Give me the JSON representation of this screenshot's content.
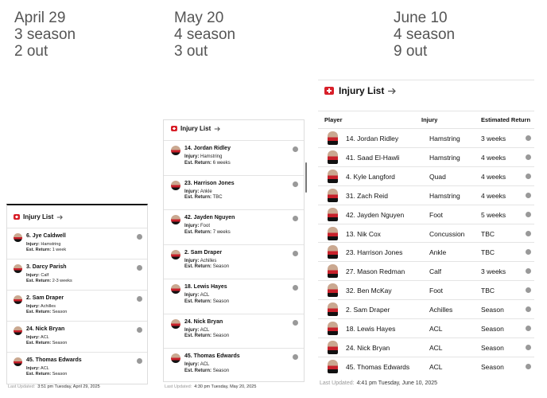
{
  "labels": {
    "injury": "Injury:",
    "return": "Est. Return:"
  },
  "columns": [
    {
      "date": "April 29",
      "season": "3 season",
      "out": "2 out",
      "panel": {
        "title": "Injury List",
        "players": [
          {
            "name": "6. Jye Caldwell",
            "injury": "Hamstring",
            "return": "1 week"
          },
          {
            "name": "3. Darcy Parish",
            "injury": "Calf",
            "return": "2-3 weeks"
          },
          {
            "name": "2. Sam Draper",
            "injury": "Achilles",
            "return": "Season"
          },
          {
            "name": "24. Nick Bryan",
            "injury": "ACL",
            "return": "Season"
          },
          {
            "name": "45. Thomas Edwards",
            "injury": "ACL",
            "return": "Season"
          }
        ],
        "footer_label": "Last Updated:",
        "footer_time": "3:51 pm Tuesday, April 29, 2025"
      }
    },
    {
      "date": "May 20",
      "season": "4 season",
      "out": "3 out",
      "panel": {
        "title": "Injury List",
        "players": [
          {
            "name": "14. Jordan Ridley",
            "injury": "Hamstring",
            "return": "6 weeks"
          },
          {
            "name": "23. Harrison Jones",
            "injury": "Ankle",
            "return": "TBC"
          },
          {
            "name": "42. Jayden Nguyen",
            "injury": "Foot",
            "return": "7 weeks"
          },
          {
            "name": "2. Sam Draper",
            "injury": "Achilles",
            "return": "Season"
          },
          {
            "name": "18. Lewis Hayes",
            "injury": "ACL",
            "return": "Season"
          },
          {
            "name": "24. Nick Bryan",
            "injury": "ACL",
            "return": "Season"
          },
          {
            "name": "45. Thomas Edwards",
            "injury": "ACL",
            "return": "Season"
          }
        ],
        "footer_label": "Last Updated:",
        "footer_time": "4:30 pm Tuesday, May 20, 2025"
      }
    },
    {
      "date": "June 10",
      "season": "4 season",
      "out": "9 out",
      "panel": {
        "title": "Injury List",
        "headers": [
          "Player",
          "Injury",
          "Estimated Return"
        ],
        "players": [
          {
            "name": "14. Jordan Ridley",
            "injury": "Hamstring",
            "return": "3 weeks"
          },
          {
            "name": "41. Saad El-Hawli",
            "injury": "Hamstring",
            "return": "4 weeks"
          },
          {
            "name": "4. Kyle Langford",
            "injury": "Quad",
            "return": "4 weeks"
          },
          {
            "name": "31. Zach Reid",
            "injury": "Hamstring",
            "return": "4 weeks"
          },
          {
            "name": "42. Jayden Nguyen",
            "injury": "Foot",
            "return": "5 weeks"
          },
          {
            "name": "13. Nik Cox",
            "injury": "Concussion",
            "return": "TBC"
          },
          {
            "name": "23. Harrison Jones",
            "injury": "Ankle",
            "return": "TBC"
          },
          {
            "name": "27. Mason Redman",
            "injury": "Calf",
            "return": "3 weeks"
          },
          {
            "name": "32. Ben McKay",
            "injury": "Foot",
            "return": "TBC"
          },
          {
            "name": "2. Sam Draper",
            "injury": "Achilles",
            "return": "Season"
          },
          {
            "name": "18. Lewis Hayes",
            "injury": "ACL",
            "return": "Season"
          },
          {
            "name": "24. Nick Bryan",
            "injury": "ACL",
            "return": "Season"
          },
          {
            "name": "45. Thomas Edwards",
            "injury": "ACL",
            "return": "Season"
          }
        ],
        "footer_label": "Last Updated:",
        "footer_time": "4:41 pm Tuesday, June 10, 2025"
      }
    }
  ]
}
